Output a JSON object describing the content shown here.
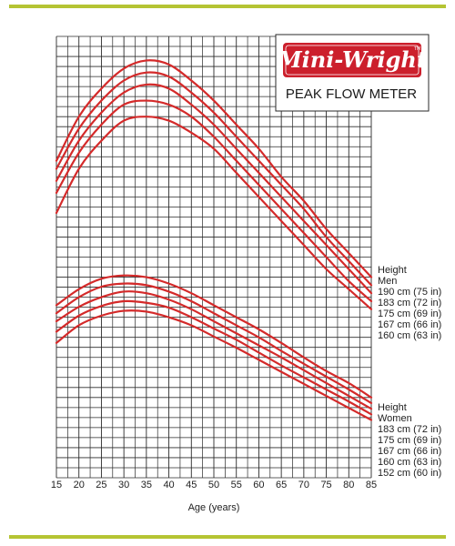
{
  "colors": {
    "rule": "#b5c433",
    "grid": "#2a2a2a",
    "curve": "#d42a2a",
    "brand": "#cc1f2c",
    "text": "#222222"
  },
  "logo": {
    "brand": "Mini-Wright",
    "product": "PEAK FLOW METER"
  },
  "chart_data": {
    "type": "line",
    "xlabel": "Age (years)",
    "x_ticks": [
      15,
      20,
      25,
      30,
      35,
      40,
      45,
      50,
      55,
      60,
      65,
      70,
      75,
      80,
      85
    ],
    "xlim": [
      15,
      85
    ],
    "ylim": [
      150,
      700
    ],
    "grid": true,
    "legend_placement": "right",
    "groups": [
      {
        "heading": "Height",
        "subheading": "Men",
        "series": [
          {
            "name": "190 cm (75 in)",
            "x": [
              15,
              20,
              25,
              30,
              35,
              40,
              45,
              50,
              55,
              60,
              65,
              70,
              75,
              80,
              85
            ],
            "y": [
              545,
              600,
              635,
              660,
              670,
              665,
              645,
              620,
              590,
              560,
              525,
              495,
              460,
              430,
              400
            ]
          },
          {
            "name": "183 cm (72 in)",
            "x": [
              15,
              20,
              25,
              30,
              35,
              40,
              45,
              50,
              55,
              60,
              65,
              70,
              75,
              80,
              85
            ],
            "y": [
              535,
              585,
              620,
              645,
              655,
              650,
              630,
              605,
              575,
              545,
              515,
              485,
              450,
              420,
              390
            ]
          },
          {
            "name": "175 cm (69 in)",
            "x": [
              15,
              20,
              25,
              30,
              35,
              40,
              45,
              50,
              55,
              60,
              65,
              70,
              75,
              80,
              85
            ],
            "y": [
              520,
              570,
              605,
              630,
              640,
              635,
              615,
              590,
              560,
              530,
              500,
              470,
              440,
              410,
              380
            ]
          },
          {
            "name": "167 cm (66 in)",
            "x": [
              15,
              20,
              25,
              30,
              35,
              40,
              45,
              50,
              55,
              60,
              65,
              70,
              75,
              80,
              85
            ],
            "y": [
              505,
              555,
              590,
              615,
              620,
              615,
              600,
              575,
              545,
              515,
              485,
              455,
              425,
              395,
              370
            ]
          },
          {
            "name": "160 cm (63 in)",
            "x": [
              15,
              20,
              25,
              30,
              35,
              40,
              45,
              50,
              55,
              60,
              65,
              70,
              75,
              80,
              85
            ],
            "y": [
              480,
              535,
              570,
              595,
              600,
              595,
              580,
              560,
              530,
              500,
              470,
              440,
              410,
              385,
              360
            ]
          }
        ]
      },
      {
        "heading": "Height",
        "subheading": "Women",
        "series": [
          {
            "name": "183 cm (72 in)",
            "x": [
              15,
              20,
              25,
              30,
              35,
              40,
              45,
              50,
              55,
              60,
              65,
              70,
              75,
              80,
              85
            ],
            "y": [
              365,
              385,
              398,
              402,
              400,
              392,
              380,
              365,
              350,
              335,
              318,
              300,
              283,
              268,
              250
            ]
          },
          {
            "name": "175 cm (69 in)",
            "x": [
              15,
              20,
              25,
              30,
              35,
              40,
              45,
              50,
              55,
              60,
              65,
              70,
              75,
              80,
              85
            ],
            "y": [
              355,
              375,
              388,
              392,
              390,
              382,
              370,
              355,
              340,
              325,
              308,
              292,
              276,
              260,
              243
            ]
          },
          {
            "name": "167 cm (66 in)",
            "x": [
              15,
              20,
              25,
              30,
              35,
              40,
              45,
              50,
              55,
              60,
              65,
              70,
              75,
              80,
              85
            ],
            "y": [
              345,
              363,
              375,
              382,
              380,
              372,
              360,
              345,
              330,
              315,
              300,
              284,
              268,
              252,
              236
            ]
          },
          {
            "name": "160 cm (63 in)",
            "x": [
              15,
              20,
              25,
              30,
              35,
              40,
              45,
              50,
              55,
              60,
              65,
              70,
              75,
              80,
              85
            ],
            "y": [
              332,
              352,
              364,
              370,
              368,
              362,
              350,
              336,
              322,
              306,
              290,
              275,
              260,
              245,
              229
            ]
          },
          {
            "name": "152 cm (60 in)",
            "x": [
              15,
              20,
              25,
              30,
              35,
              40,
              45,
              50,
              55,
              60,
              65,
              70,
              75,
              80,
              85
            ],
            "y": [
              318,
              340,
              352,
              358,
              357,
              350,
              340,
              326,
              312,
              297,
              282,
              267,
              252,
              237,
              222
            ]
          }
        ]
      }
    ]
  }
}
